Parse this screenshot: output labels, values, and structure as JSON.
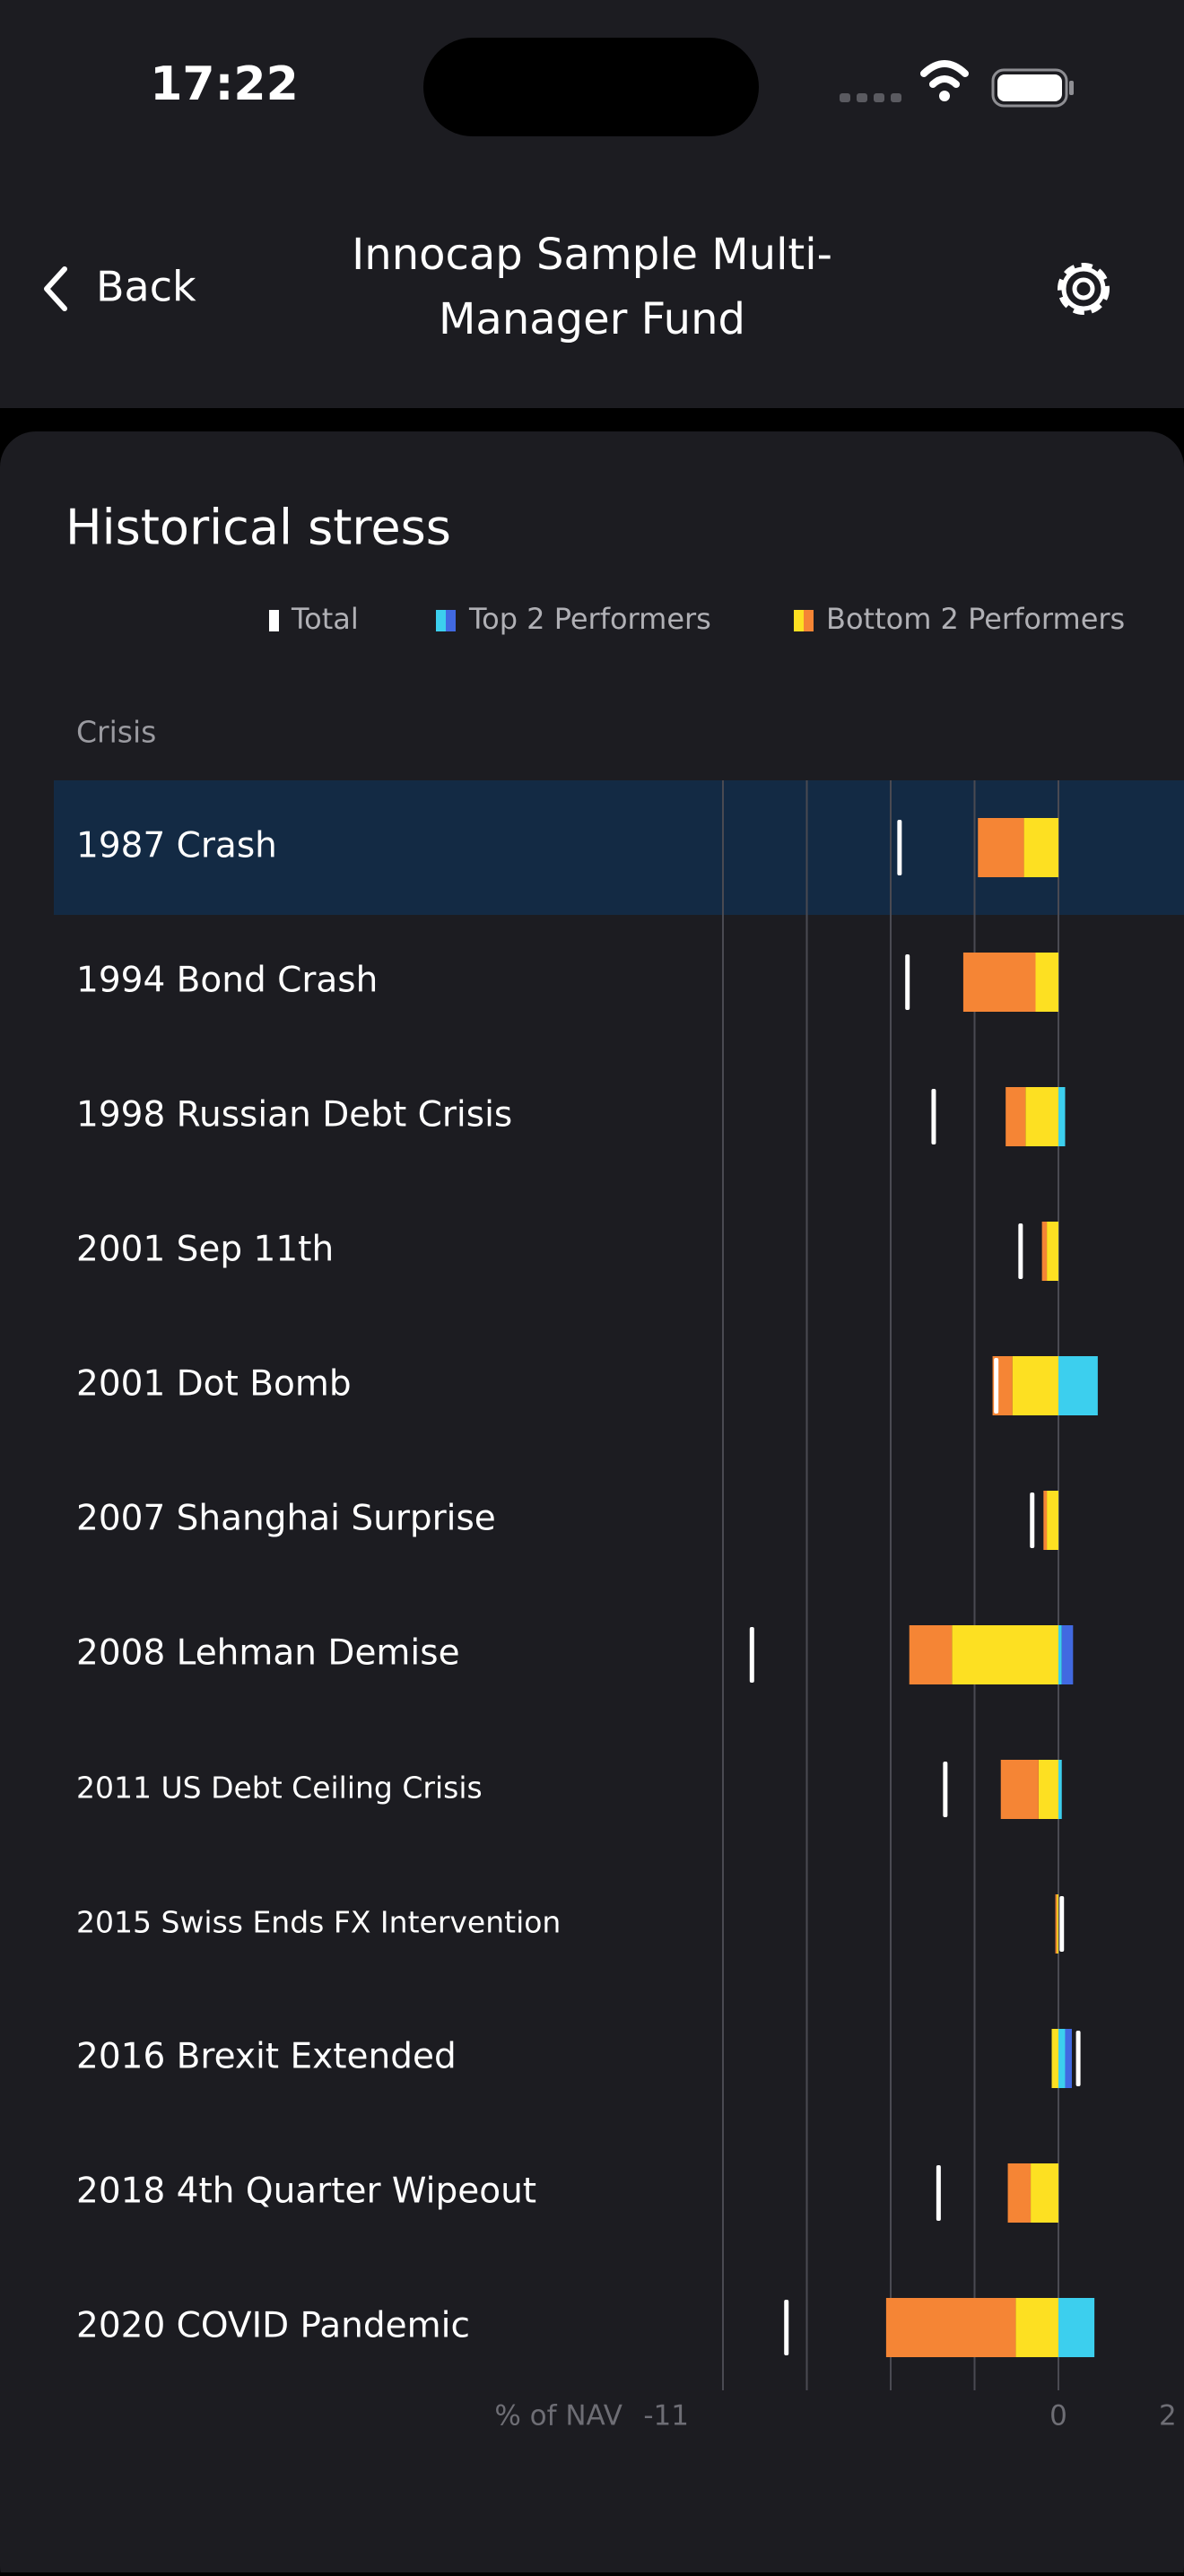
{
  "status_bar": {
    "time": "17:22"
  },
  "nav": {
    "back": "Back",
    "title_lines": [
      "Innocap Sample Multi-",
      "Manager Fund"
    ]
  },
  "chart_data": {
    "type": "stacked-bar-h",
    "title": "Historical stress",
    "ylabel": "Crisis",
    "xlabel": "% of NAV",
    "categories": [
      "1987 Crash",
      "1994 Bond Crash",
      "1998 Russian Debt Crisis",
      "2001 Sep 11th",
      "2001 Dot Bomb",
      "2007 Shanghai Surprise",
      "2008 Lehman Demise",
      "2011 US Debt Ceiling Crisis",
      "2015 Swiss Ends FX Intervention",
      "2016 Brexit Extended",
      "2018 4th Quarter Wipeout",
      "2020 COVID Pandemic"
    ],
    "series": [
      {
        "name": "Total",
        "color": "#ffffff",
        "values": [
          -5.21,
          -4.95,
          -4.09,
          -1.24,
          -2.04,
          -0.86,
          -10.05,
          -3.71,
          0.11,
          0.65,
          -3.93,
          -8.92
        ]
      },
      {
        "name": "Top 2 Performers",
        "colors": [
          "#3ccfee",
          "#4169e1"
        ],
        "values": [
          [
            0,
            0
          ],
          [
            0,
            0
          ],
          [
            0.22,
            0
          ],
          [
            0,
            0
          ],
          [
            1.29,
            0
          ],
          [
            0,
            0
          ],
          [
            0.11,
            0.37
          ],
          [
            0.11,
            0
          ],
          [
            0,
            0
          ],
          [
            0.22,
            0.22
          ],
          [
            0,
            0
          ],
          [
            1.18,
            0
          ]
        ]
      },
      {
        "name": "Bottom 2 Performers",
        "colors": [
          "#fde022",
          "#f58535"
        ],
        "values": [
          [
            -1.13,
            -1.51
          ],
          [
            -0.75,
            -2.37
          ],
          [
            -1.08,
            -0.65
          ],
          [
            -0.38,
            -0.16
          ],
          [
            -1.51,
            -0.65
          ],
          [
            -0.38,
            -0.11
          ],
          [
            -3.49,
            -1.4
          ],
          [
            -0.65,
            -1.24
          ],
          [
            -0.05,
            -0.05
          ],
          [
            -0.22,
            0
          ],
          [
            -0.91,
            -0.75
          ],
          [
            -1.4,
            -4.25
          ]
        ]
      }
    ],
    "xlim": [
      -11,
      2
    ],
    "xticks": [
      -11,
      0,
      2
    ],
    "grid_lines": [
      -11,
      -8.25,
      -5.5,
      -2.75,
      0
    ],
    "selected": 0
  }
}
